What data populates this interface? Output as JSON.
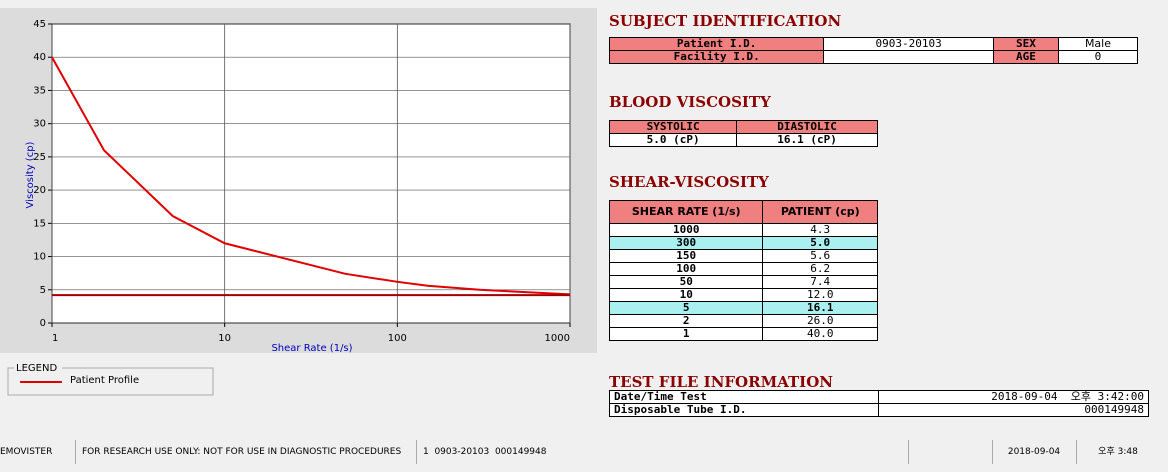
{
  "chart_data": {
    "type": "line",
    "x_label": "Shear Rate (1/s)",
    "y_label": "Viscosity (cp)",
    "log_x": true,
    "grid": true,
    "xlim": [
      1,
      1000
    ],
    "xticks": [
      1,
      10,
      100,
      1000
    ],
    "ylim": [
      0,
      45
    ],
    "yticks": [
      0,
      5,
      10,
      15,
      20,
      25,
      30,
      35,
      40,
      45
    ],
    "legend_title": "LEGEND",
    "series": [
      {
        "name": "Patient Profile",
        "color": "#e00000",
        "x": [
          1,
          2,
          5,
          10,
          50,
          100,
          150,
          300,
          1000
        ],
        "values": [
          40,
          26,
          16.1,
          12,
          7.4,
          6.2,
          5.6,
          5.0,
          4.3
        ]
      },
      {
        "color": "#a00000",
        "x": [
          1,
          1000
        ],
        "values": [
          4.2,
          4.2
        ]
      }
    ]
  },
  "subject": {
    "title": "SUBJECT IDENTIFICATION",
    "patient_id_label": "Patient I.D.",
    "patient_id": "0903-20103",
    "sex_label": "SEX",
    "sex": "Male",
    "facility_label": "Facility I.D.",
    "age_label": "AGE",
    "age": "0"
  },
  "blood": {
    "title": "BLOOD VISCOSITY",
    "headers": [
      "SYSTOLIC",
      "DIASTOLIC"
    ],
    "values": [
      "5.0 (cP)",
      "16.1 (cP)"
    ]
  },
  "shear": {
    "title": "SHEAR-VISCOSITY",
    "headers": [
      "SHEAR RATE (1/s)",
      "PATIENT (cp)"
    ],
    "rows": [
      [
        "1000",
        "4.3"
      ],
      [
        "300",
        "5.0"
      ],
      [
        "150",
        "5.6"
      ],
      [
        "100",
        "6.2"
      ],
      [
        "50",
        "7.4"
      ],
      [
        "10",
        "12.0"
      ],
      [
        "5",
        "16.1"
      ],
      [
        "2",
        "26.0"
      ],
      [
        "1",
        "40.0"
      ]
    ]
  },
  "test": {
    "title": "TEST FILE INFORMATION",
    "rows": [
      [
        "Date/Time Test",
        "2018-09-04  오후 3:42:00"
      ],
      [
        "Disposable Tube I.D.",
        "000149948"
      ]
    ]
  },
  "status": [
    "EMOVISTER",
    "FOR RESEARCH USE ONLY: NOT FOR USE IN DIAGNOSTIC PROCEDURES",
    "1  0903-20103  000149948",
    "2018-09-04",
    "오후 3:48"
  ]
}
